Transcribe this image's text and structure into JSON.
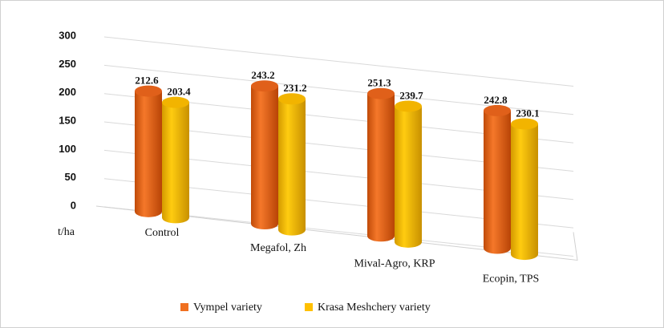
{
  "chart_data": {
    "type": "bar3d",
    "y_axis_label": "t/ha",
    "categories": [
      "Control",
      "Megafol, Zh",
      "Mival-Agro, KRP",
      "Ecopin, TPS"
    ],
    "series": [
      {
        "name": "Vympel variety",
        "color": "#f07020",
        "values": [
          212.6,
          243.2,
          251.3,
          242.8
        ]
      },
      {
        "name": "Krasa Meshchery variety",
        "color": "#ffc000",
        "values": [
          203.4,
          231.2,
          239.7,
          230.1
        ]
      }
    ],
    "ylim": [
      0,
      300
    ],
    "yticks": [
      0,
      50,
      100,
      150,
      200,
      250,
      300
    ],
    "grid": true,
    "legend": "bottom"
  }
}
